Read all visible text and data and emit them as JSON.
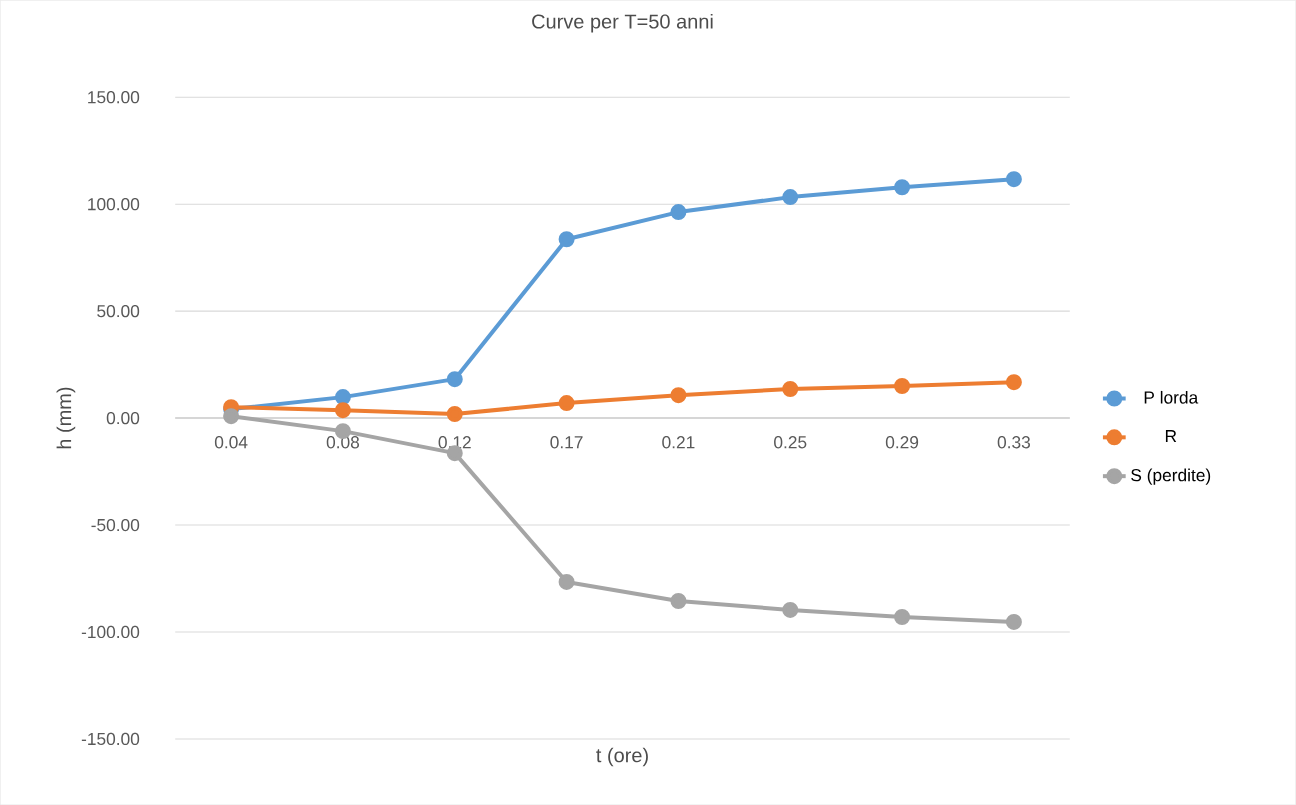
{
  "chart_data": {
    "type": "line",
    "title": "Curve per T=50 anni",
    "xlabel": "t (ore)",
    "ylabel": "h (mm)",
    "categories": [
      "0.04",
      "0.08",
      "0.12",
      "0.17",
      "0.21",
      "0.25",
      "0.29",
      "0.33"
    ],
    "series": [
      {
        "name": "P lorda",
        "color": "#5b9bd5",
        "values": [
          4.2,
          9.8,
          18.2,
          83.6,
          96.3,
          103.3,
          107.9,
          111.7
        ]
      },
      {
        "name": "R",
        "color": "#ed7d31",
        "values": [
          5.1,
          3.7,
          1.9,
          7.0,
          10.7,
          13.6,
          15.0,
          16.8
        ]
      },
      {
        "name": "S (perdite)",
        "color": "#a5a5a5",
        "values": [
          0.9,
          -6.1,
          -16.4,
          -76.6,
          -85.5,
          -89.7,
          -93.0,
          -95.3
        ]
      }
    ],
    "ylim": [
      -150,
      150
    ],
    "yticks": [
      {
        "value": -150,
        "label": "-150.00"
      },
      {
        "value": -100,
        "label": "-100.00"
      },
      {
        "value": -50,
        "label": "-50.00"
      },
      {
        "value": 0,
        "label": "0.00"
      },
      {
        "value": 50,
        "label": "50.00"
      },
      {
        "value": 100,
        "label": "100.00"
      },
      {
        "value": 150,
        "label": "150.00"
      }
    ],
    "grid": "y",
    "legend": "right",
    "marker": "circle",
    "line_style": "solid"
  }
}
